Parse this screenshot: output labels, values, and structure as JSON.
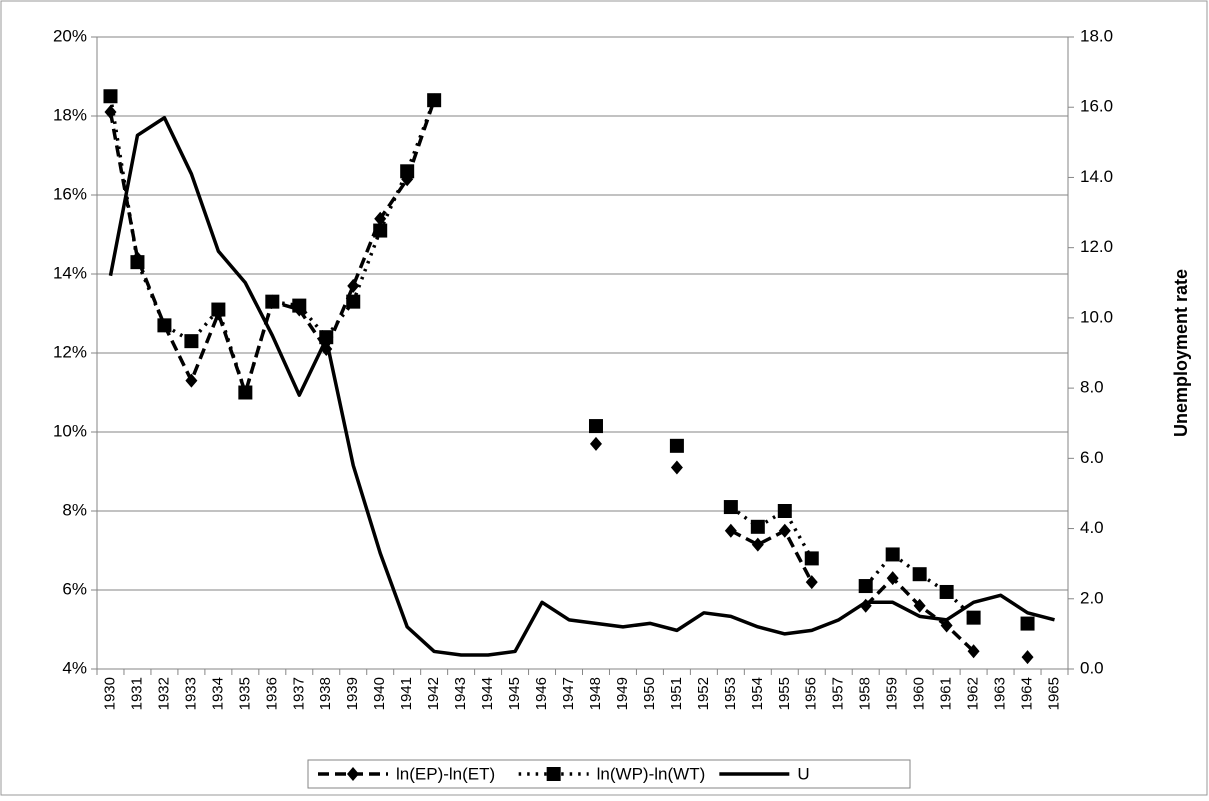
{
  "chart_data": {
    "type": "line",
    "categories": [
      "1930",
      "1931",
      "1932",
      "1933",
      "1934",
      "1935",
      "1936",
      "1937",
      "1938",
      "1939",
      "1940",
      "1941",
      "1942",
      "1943",
      "1944",
      "1945",
      "1946",
      "1947",
      "1948",
      "1949",
      "1950",
      "1951",
      "1952",
      "1953",
      "1954",
      "1955",
      "1956",
      "1957",
      "1958",
      "1959",
      "1960",
      "1961",
      "1962",
      "1963",
      "1964",
      "1965"
    ],
    "series": [
      {
        "name": "ln(EP)-ln(ET)",
        "color": "#000000",
        "style": "dashed",
        "marker": "diamond",
        "values": [
          18.1,
          14.4,
          12.7,
          11.3,
          13.0,
          11.0,
          13.3,
          13.1,
          12.1,
          13.7,
          15.4,
          16.4,
          18.4,
          null,
          null,
          null,
          null,
          null,
          9.7,
          null,
          null,
          9.1,
          null,
          7.5,
          7.15,
          7.5,
          6.2,
          null,
          5.6,
          6.3,
          5.6,
          5.1,
          4.45,
          null,
          4.3,
          null
        ]
      },
      {
        "name": "ln(WP)-ln(WT)",
        "color": "#000000",
        "style": "dotted",
        "marker": "square",
        "values": [
          18.5,
          14.3,
          12.7,
          12.3,
          13.1,
          11.0,
          13.3,
          13.2,
          12.4,
          13.3,
          15.1,
          16.6,
          18.4,
          null,
          null,
          null,
          null,
          null,
          10.15,
          null,
          null,
          9.65,
          null,
          8.1,
          7.6,
          8.0,
          6.8,
          null,
          6.1,
          6.9,
          6.4,
          5.95,
          5.3,
          null,
          5.15,
          null
        ]
      },
      {
        "name": "U",
        "color": "#000000",
        "style": "solid",
        "axis": "y2",
        "values": [
          11.2,
          15.2,
          15.7,
          14.1,
          11.9,
          11.0,
          9.5,
          7.8,
          9.4,
          5.8,
          3.3,
          1.2,
          0.5,
          0.4,
          0.4,
          0.5,
          1.9,
          1.4,
          1.3,
          1.2,
          1.3,
          1.1,
          1.6,
          1.5,
          1.2,
          1.0,
          1.1,
          1.4,
          1.9,
          1.9,
          1.5,
          1.4,
          1.9,
          2.1,
          1.6,
          1.4
        ]
      }
    ],
    "ylim": [
      4,
      20
    ],
    "yticks": [
      {
        "value": 4,
        "label": "4%"
      },
      {
        "value": 6,
        "label": "6%"
      },
      {
        "value": 8,
        "label": "8%"
      },
      {
        "value": 10,
        "label": "10%"
      },
      {
        "value": 12,
        "label": "12%"
      },
      {
        "value": 14,
        "label": "14%"
      },
      {
        "value": 16,
        "label": "16%"
      },
      {
        "value": 18,
        "label": "18%"
      },
      {
        "value": 20,
        "label": "20%"
      }
    ],
    "y2label": "Unemployment rate",
    "y2lim": [
      0,
      18
    ],
    "y2ticks": [
      {
        "value": 0,
        "label": "0.0"
      },
      {
        "value": 2,
        "label": "2.0"
      },
      {
        "value": 4,
        "label": "4.0"
      },
      {
        "value": 6,
        "label": "6.0"
      },
      {
        "value": 8,
        "label": "8.0"
      },
      {
        "value": 10,
        "label": "10.0"
      },
      {
        "value": 12,
        "label": "12.0"
      },
      {
        "value": 14,
        "label": "14.0"
      },
      {
        "value": 16,
        "label": "16.0"
      },
      {
        "value": 18,
        "label": "18.0"
      }
    ],
    "grid": true,
    "legend": "bottom"
  }
}
